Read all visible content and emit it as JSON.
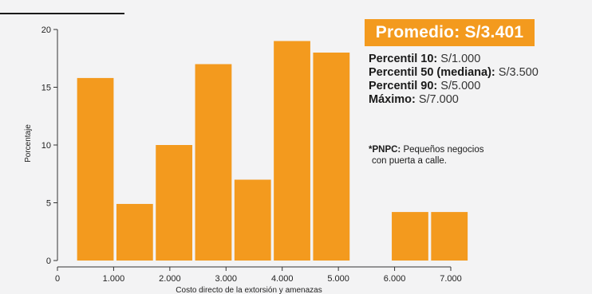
{
  "summary": {
    "average_label": "Promedio: S/3.401",
    "stats": [
      {
        "label": "Percentil 10:",
        "value": "S/1.000"
      },
      {
        "label": "Percentil 50 (mediana):",
        "value": "S/3.500"
      },
      {
        "label": "Percentil 90:",
        "value": "S/5.000"
      },
      {
        "label": "Máximo:",
        "value": "S/7.000"
      }
    ],
    "note": {
      "prefix": "*PNPC:",
      "line1": " Pequeños negocios",
      "line2": "con puerta a calle."
    }
  },
  "chart_data": {
    "type": "bar",
    "title": "",
    "xlabel": "Costo directo de la extorsión y amenazas",
    "ylabel": "Porcentaje",
    "xlim": [
      0,
      7000
    ],
    "ylim": [
      0,
      20
    ],
    "x_ticks": [
      0,
      1000,
      2000,
      3000,
      4000,
      5000,
      6000,
      7000
    ],
    "x_tick_labels": [
      "0",
      "1.000",
      "2.000",
      "3.000",
      "4.000",
      "5.000",
      "6.000",
      "7.000"
    ],
    "y_ticks": [
      0,
      5,
      10,
      15,
      20
    ],
    "y_tick_labels": [
      "0",
      "5",
      "10",
      "15",
      "20"
    ],
    "bins": [
      {
        "start": 350,
        "end": 1000,
        "value": 15.8
      },
      {
        "start": 1050,
        "end": 1700,
        "value": 4.9
      },
      {
        "start": 1750,
        "end": 2400,
        "value": 10.0
      },
      {
        "start": 2450,
        "end": 3100,
        "value": 17.0
      },
      {
        "start": 3150,
        "end": 3800,
        "value": 7.0
      },
      {
        "start": 3850,
        "end": 4500,
        "value": 19.0
      },
      {
        "start": 4550,
        "end": 5200,
        "value": 18.0
      },
      {
        "start": 5950,
        "end": 6600,
        "value": 4.2
      },
      {
        "start": 6650,
        "end": 7300,
        "value": 4.2
      }
    ],
    "bar_color": "#f39a1e",
    "grid": false,
    "legend": "none"
  }
}
